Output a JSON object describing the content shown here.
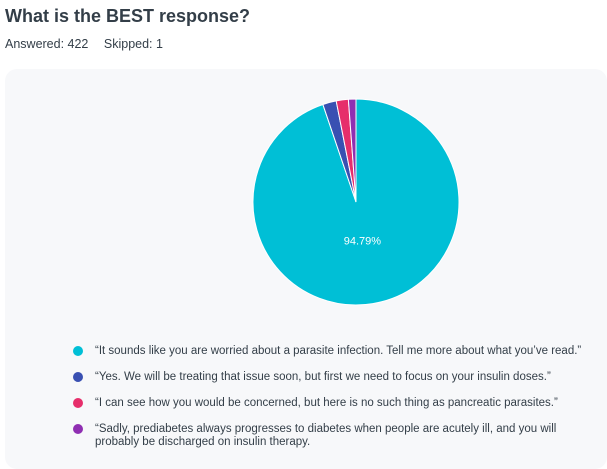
{
  "question": {
    "title": "What is the BEST response?",
    "answered_label": "Answered: 422",
    "skipped_label": "Skipped: 1"
  },
  "chart_data": {
    "type": "pie",
    "categories": [
      "“It sounds like you are worried about a parasite infection. Tell me more about what you’ve read.”",
      "“Yes. We will be treating that issue soon, but first we need to focus on your insulin doses.”",
      "“I can see how you would be concerned, but here is no such thing as pancreatic parasites.”",
      "“Sadly, prediabetes always progresses to diabetes when people are acutely ill, and you will probably be discharged on insulin therapy."
    ],
    "values": [
      94.79,
      2.13,
      1.9,
      1.18
    ],
    "colors": [
      "#00bfd6",
      "#3950b2",
      "#e62e6b",
      "#8f2fb2"
    ],
    "data_labels": [
      "94.79%",
      "",
      "",
      ""
    ],
    "legend_position": "bottom"
  }
}
